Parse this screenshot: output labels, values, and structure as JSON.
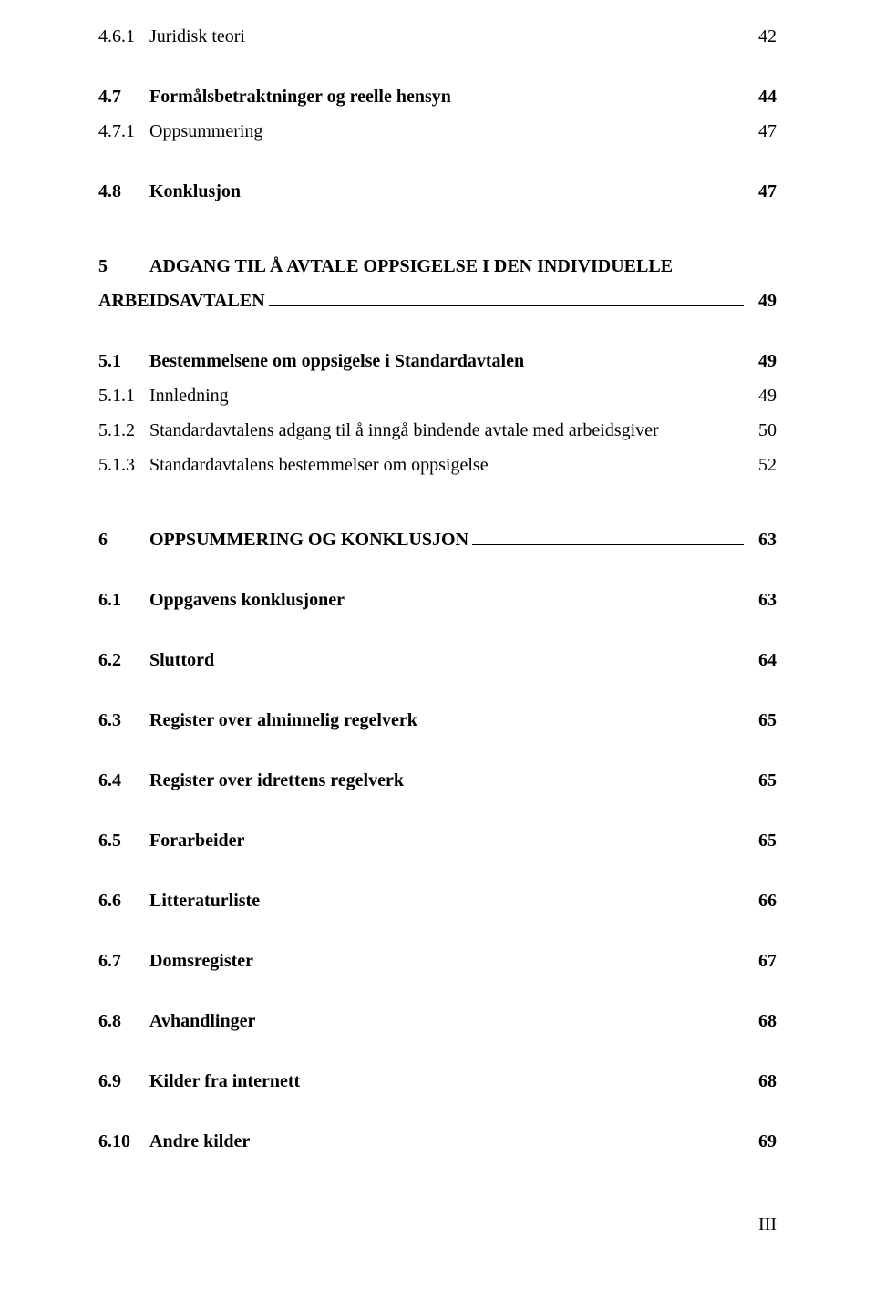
{
  "entries": [
    {
      "num": "4.6.1",
      "title": "Juridisk teori",
      "page": "42",
      "level": 2,
      "bold": false,
      "underline": false,
      "spacing": "none"
    },
    {
      "num": "4.7",
      "title": "Formålsbetraktninger og reelle hensyn",
      "page": "44",
      "level": 1,
      "bold": true,
      "underline": false,
      "spacing": "md"
    },
    {
      "num": "4.7.1",
      "title": "Oppsummering",
      "page": "47",
      "level": 2,
      "bold": false,
      "underline": false,
      "spacing": "sm"
    },
    {
      "num": "4.8",
      "title": "Konklusjon",
      "page": "47",
      "level": 1,
      "bold": true,
      "underline": false,
      "spacing": "md"
    },
    {
      "num": "5",
      "title": "ADGANG TIL Å AVTALE OPPSIGELSE I DEN INDIVIDUELLE",
      "title2": "ARBEIDSAVTALEN",
      "page": "49",
      "level": 0,
      "bold": true,
      "underline": true,
      "spacing": "lg"
    },
    {
      "num": "5.1",
      "title": "Bestemmelsene om oppsigelse i Standardavtalen",
      "page": "49",
      "level": 1,
      "bold": true,
      "underline": false,
      "spacing": "md"
    },
    {
      "num": "5.1.1",
      "title": "Innledning",
      "page": "49",
      "level": 2,
      "bold": false,
      "underline": false,
      "spacing": "sm"
    },
    {
      "num": "5.1.2",
      "title": "Standardavtalens adgang til å inngå bindende avtale med arbeidsgiver",
      "page": "50",
      "level": 2,
      "bold": false,
      "underline": false,
      "spacing": "sm"
    },
    {
      "num": "5.1.3",
      "title": "Standardavtalens bestemmelser om oppsigelse",
      "page": "52",
      "level": 2,
      "bold": false,
      "underline": false,
      "spacing": "sm"
    },
    {
      "num": "6",
      "title": "OPPSUMMERING OG KONKLUSJON",
      "page": "63",
      "level": 0,
      "bold": true,
      "underline": true,
      "spacing": "xl"
    },
    {
      "num": "6.1",
      "title": "Oppgavens konklusjoner",
      "page": "63",
      "level": 1,
      "bold": true,
      "underline": false,
      "spacing": "md"
    },
    {
      "num": "6.2",
      "title": "Sluttord",
      "page": "64",
      "level": 1,
      "bold": true,
      "underline": false,
      "spacing": "md"
    },
    {
      "num": "6.3",
      "title": "Register over alminnelig regelverk",
      "page": "65",
      "level": 1,
      "bold": true,
      "underline": false,
      "spacing": "md"
    },
    {
      "num": "6.4",
      "title": "Register over idrettens regelverk",
      "page": "65",
      "level": 1,
      "bold": true,
      "underline": false,
      "spacing": "md"
    },
    {
      "num": "6.5",
      "title": "Forarbeider",
      "page": "65",
      "level": 1,
      "bold": true,
      "underline": false,
      "spacing": "md"
    },
    {
      "num": "6.6",
      "title": "Litteraturliste",
      "page": "66",
      "level": 1,
      "bold": true,
      "underline": false,
      "spacing": "md"
    },
    {
      "num": "6.7",
      "title": "Domsregister",
      "page": "67",
      "level": 1,
      "bold": true,
      "underline": false,
      "spacing": "md"
    },
    {
      "num": "6.8",
      "title": "Avhandlinger",
      "page": "68",
      "level": 1,
      "bold": true,
      "underline": false,
      "spacing": "md"
    },
    {
      "num": "6.9",
      "title": "Kilder fra internett",
      "page": "68",
      "level": 1,
      "bold": true,
      "underline": false,
      "spacing": "md"
    },
    {
      "num": "6.10",
      "title": "Andre kilder",
      "page": "69",
      "level": 1,
      "bold": true,
      "underline": false,
      "spacing": "md"
    }
  ],
  "footer": "III"
}
